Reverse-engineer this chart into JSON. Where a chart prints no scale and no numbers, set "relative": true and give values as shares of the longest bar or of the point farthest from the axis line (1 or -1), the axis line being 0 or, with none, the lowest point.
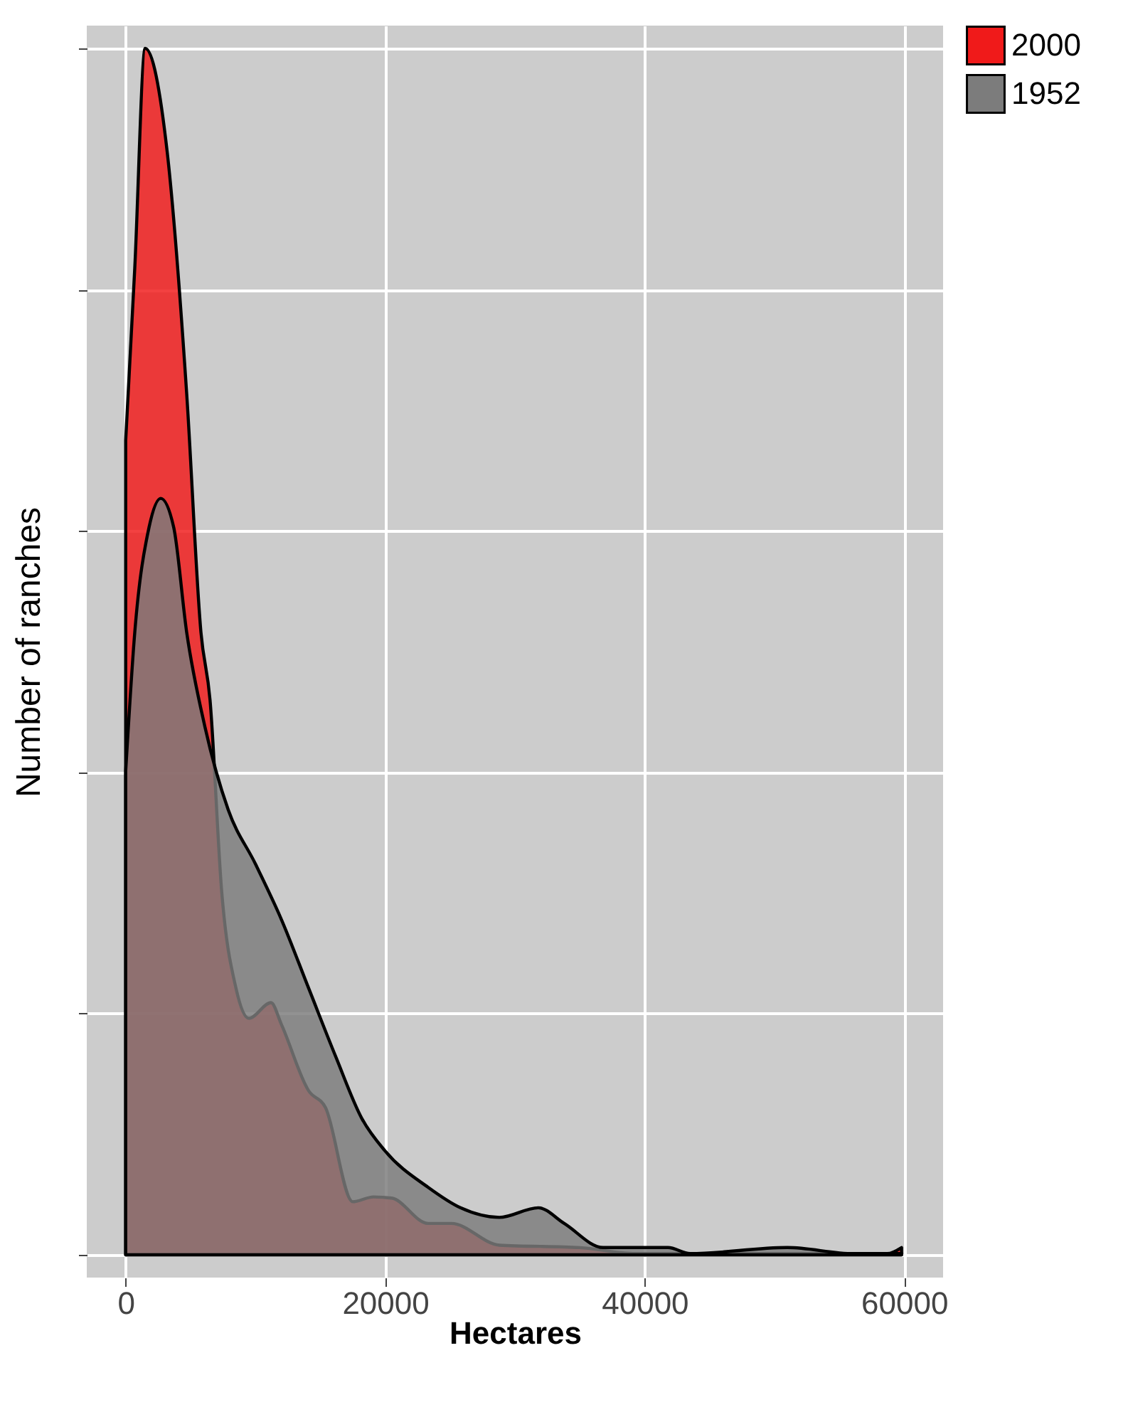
{
  "chart_data": {
    "type": "area",
    "relative": true,
    "xlabel": "Hectares",
    "ylabel": "Number of ranches",
    "xlim": [
      -3000,
      63000
    ],
    "xticks": [
      0,
      20000,
      40000,
      60000
    ],
    "grid": true,
    "legend": "right",
    "tick_labels": "x",
    "series": [
      {
        "name": "2000",
        "color": "#f01a1a",
        "x": [
          0,
          700,
          1500,
          3200,
          4700,
          5800,
          6500,
          7400,
          8500,
          9500,
          11200,
          12000,
          14100,
          15400,
          17500,
          19100,
          20500,
          23300,
          25100,
          28800,
          35000,
          39300,
          49900,
          58700,
          59800
        ],
        "values": [
          0.675,
          0.818,
          1.0,
          0.914,
          0.714,
          0.516,
          0.46,
          0.301,
          0.221,
          0.196,
          0.209,
          0.191,
          0.136,
          0.122,
          0.044,
          0.048,
          0.047,
          0.026,
          0.026,
          0.008,
          0.006,
          0.001,
          0.001,
          0.001,
          0.006
        ]
      },
      {
        "name": "1952",
        "color": "#7c7c7c",
        "x": [
          0,
          700,
          1800,
          2700,
          3700,
          4700,
          6100,
          7900,
          10000,
          12000,
          14100,
          16200,
          18200,
          20000,
          23300,
          25800,
          28800,
          31800,
          33800,
          36800,
          41800,
          43500,
          51000,
          56100,
          59800
        ],
        "values": [
          0.401,
          0.516,
          0.603,
          0.627,
          0.603,
          0.516,
          0.438,
          0.369,
          0.324,
          0.278,
          0.221,
          0.164,
          0.113,
          0.086,
          0.056,
          0.039,
          0.031,
          0.039,
          0.026,
          0.006,
          0.006,
          0.001,
          0.006,
          0.001,
          0.001
        ]
      }
    ]
  }
}
